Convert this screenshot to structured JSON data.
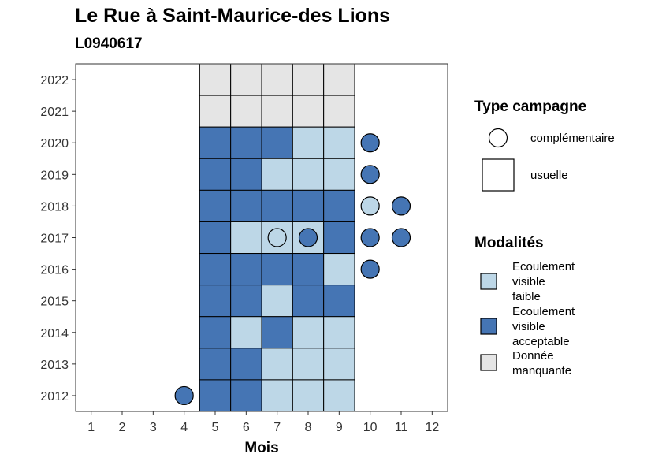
{
  "chart_data": {
    "type": "heatmap",
    "title": "Le Rue à Saint-Maurice-des Lions",
    "subtitle": "L0940617",
    "xlabel": "Mois",
    "ylabel": "",
    "x_ticks": [
      1,
      2,
      3,
      4,
      5,
      6,
      7,
      8,
      9,
      10,
      11,
      12
    ],
    "y_ticks": [
      2012,
      2013,
      2014,
      2015,
      2016,
      2017,
      2018,
      2019,
      2020,
      2021,
      2022
    ],
    "xlim": [
      0.5,
      12.5
    ],
    "ylim": [
      2011.5,
      2022.5
    ],
    "grid": false,
    "colors": {
      "faible": "#bdd7e7",
      "acceptable": "#4575b4",
      "manquante": "#e5e5e5"
    },
    "legend_type": {
      "title": "Type campagne",
      "position": "right",
      "items": [
        {
          "label": "complémentaire",
          "shape": "circle"
        },
        {
          "label": "usuelle",
          "shape": "square"
        }
      ]
    },
    "legend_modalites": {
      "title": "Modalités",
      "position": "right",
      "items": [
        {
          "lines": [
            "Ecoulement",
            "visible",
            "faible"
          ],
          "color_key": "faible"
        },
        {
          "lines": [
            "Ecoulement",
            "visible",
            "acceptable"
          ],
          "color_key": "acceptable"
        },
        {
          "lines": [
            "Donnée",
            "manquante"
          ],
          "color_key": "manquante"
        }
      ]
    },
    "usuelle": [
      {
        "year": 2022,
        "values": {
          "5": "manquante",
          "6": "manquante",
          "7": "manquante",
          "8": "manquante",
          "9": "manquante"
        }
      },
      {
        "year": 2021,
        "values": {
          "5": "manquante",
          "6": "manquante",
          "7": "manquante",
          "8": "manquante",
          "9": "manquante"
        }
      },
      {
        "year": 2020,
        "values": {
          "5": "acceptable",
          "6": "acceptable",
          "7": "acceptable",
          "8": "faible",
          "9": "faible"
        }
      },
      {
        "year": 2019,
        "values": {
          "5": "acceptable",
          "6": "acceptable",
          "7": "faible",
          "8": "faible",
          "9": "faible"
        }
      },
      {
        "year": 2018,
        "values": {
          "5": "acceptable",
          "6": "acceptable",
          "7": "acceptable",
          "8": "acceptable",
          "9": "acceptable"
        }
      },
      {
        "year": 2017,
        "values": {
          "5": "acceptable",
          "6": "faible",
          "7": "faible",
          "8": "faible",
          "9": "acceptable"
        }
      },
      {
        "year": 2016,
        "values": {
          "5": "acceptable",
          "6": "acceptable",
          "7": "acceptable",
          "8": "acceptable",
          "9": "faible"
        }
      },
      {
        "year": 2015,
        "values": {
          "5": "acceptable",
          "6": "acceptable",
          "7": "faible",
          "8": "acceptable",
          "9": "acceptable"
        }
      },
      {
        "year": 2014,
        "values": {
          "5": "acceptable",
          "6": "faible",
          "7": "acceptable",
          "8": "faible",
          "9": "faible"
        }
      },
      {
        "year": 2013,
        "values": {
          "5": "acceptable",
          "6": "acceptable",
          "7": "faible",
          "8": "faible",
          "9": "faible"
        }
      },
      {
        "year": 2012,
        "values": {
          "5": "acceptable",
          "6": "acceptable",
          "7": "faible",
          "8": "faible",
          "9": "faible"
        }
      }
    ],
    "complementaire": [
      {
        "year": 2020,
        "month": 10,
        "value": "acceptable"
      },
      {
        "year": 2019,
        "month": 10,
        "value": "acceptable"
      },
      {
        "year": 2018,
        "month": 10,
        "value": "faible"
      },
      {
        "year": 2018,
        "month": 11,
        "value": "acceptable"
      },
      {
        "year": 2017,
        "month": 7,
        "value": "faible"
      },
      {
        "year": 2017,
        "month": 8,
        "value": "acceptable"
      },
      {
        "year": 2017,
        "month": 10,
        "value": "acceptable"
      },
      {
        "year": 2017,
        "month": 11,
        "value": "acceptable"
      },
      {
        "year": 2016,
        "month": 10,
        "value": "acceptable"
      },
      {
        "year": 2012,
        "month": 4,
        "value": "acceptable"
      }
    ]
  }
}
